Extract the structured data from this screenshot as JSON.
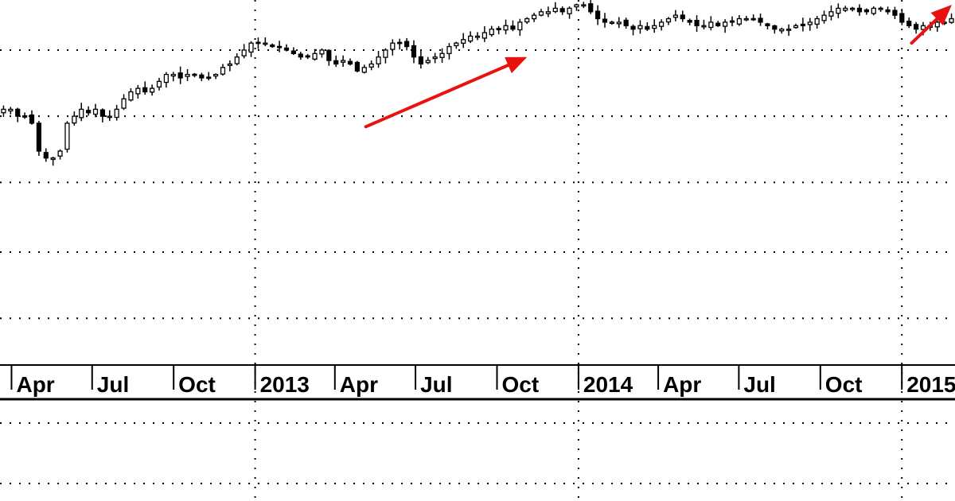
{
  "chart_data": {
    "type": "candlestick",
    "grid": "dotted",
    "x_tick_labels": [
      "Apr",
      "Jul",
      "Oct",
      "2013",
      "Apr",
      "Jul",
      "Oct",
      "2014",
      "Apr",
      "Jul",
      "Oct",
      "2015"
    ],
    "x_tick_dates": [
      "2012-04-01",
      "2012-07-01",
      "2012-10-01",
      "2013-01-01",
      "2013-04-01",
      "2013-07-01",
      "2013-10-01",
      "2014-01-01",
      "2014-04-01",
      "2014-07-01",
      "2014-10-01",
      "2015-01-01"
    ],
    "x_range": [
      "2012-03-19",
      "2015-03-02"
    ],
    "y_range": [
      0,
      100
    ],
    "y_gridlines": [
      10,
      29,
      49,
      68,
      87
    ],
    "closes": [
      70,
      70,
      68,
      68,
      66,
      58,
      56,
      56,
      58,
      66,
      68,
      70,
      69,
      70,
      68,
      68,
      70,
      73,
      75,
      76,
      75,
      76,
      78,
      80,
      80,
      79,
      80,
      80,
      79,
      79,
      80,
      82,
      83,
      85,
      87,
      89,
      89,
      89,
      88,
      88,
      87,
      86,
      85,
      85,
      86,
      87,
      84,
      83,
      84,
      83,
      81,
      82,
      83,
      85,
      87,
      89,
      89,
      88,
      85,
      83,
      84,
      85,
      86,
      88,
      89,
      90,
      91,
      91,
      92,
      93,
      93,
      94,
      93,
      95,
      96,
      97,
      98,
      98,
      99,
      98,
      99,
      100,
      100,
      98,
      96,
      95,
      95,
      95,
      94,
      93,
      94,
      93,
      94,
      95,
      96,
      97,
      96,
      95,
      94,
      94,
      95,
      94,
      95,
      95,
      96,
      96,
      96,
      95,
      94,
      93,
      93,
      93,
      94,
      94,
      95,
      96,
      97,
      98,
      99,
      99,
      99,
      98,
      98,
      99,
      99,
      98,
      97,
      95,
      94,
      93,
      94,
      94,
      95,
      95,
      96
    ],
    "arrows": [
      {
        "from": [
          "2013-05-06",
          65
        ],
        "to": [
          "2013-11-04",
          85
        ]
      },
      {
        "from": [
          "2015-01-12",
          89
        ],
        "to": [
          "2015-03-02",
          100
        ]
      }
    ]
  }
}
